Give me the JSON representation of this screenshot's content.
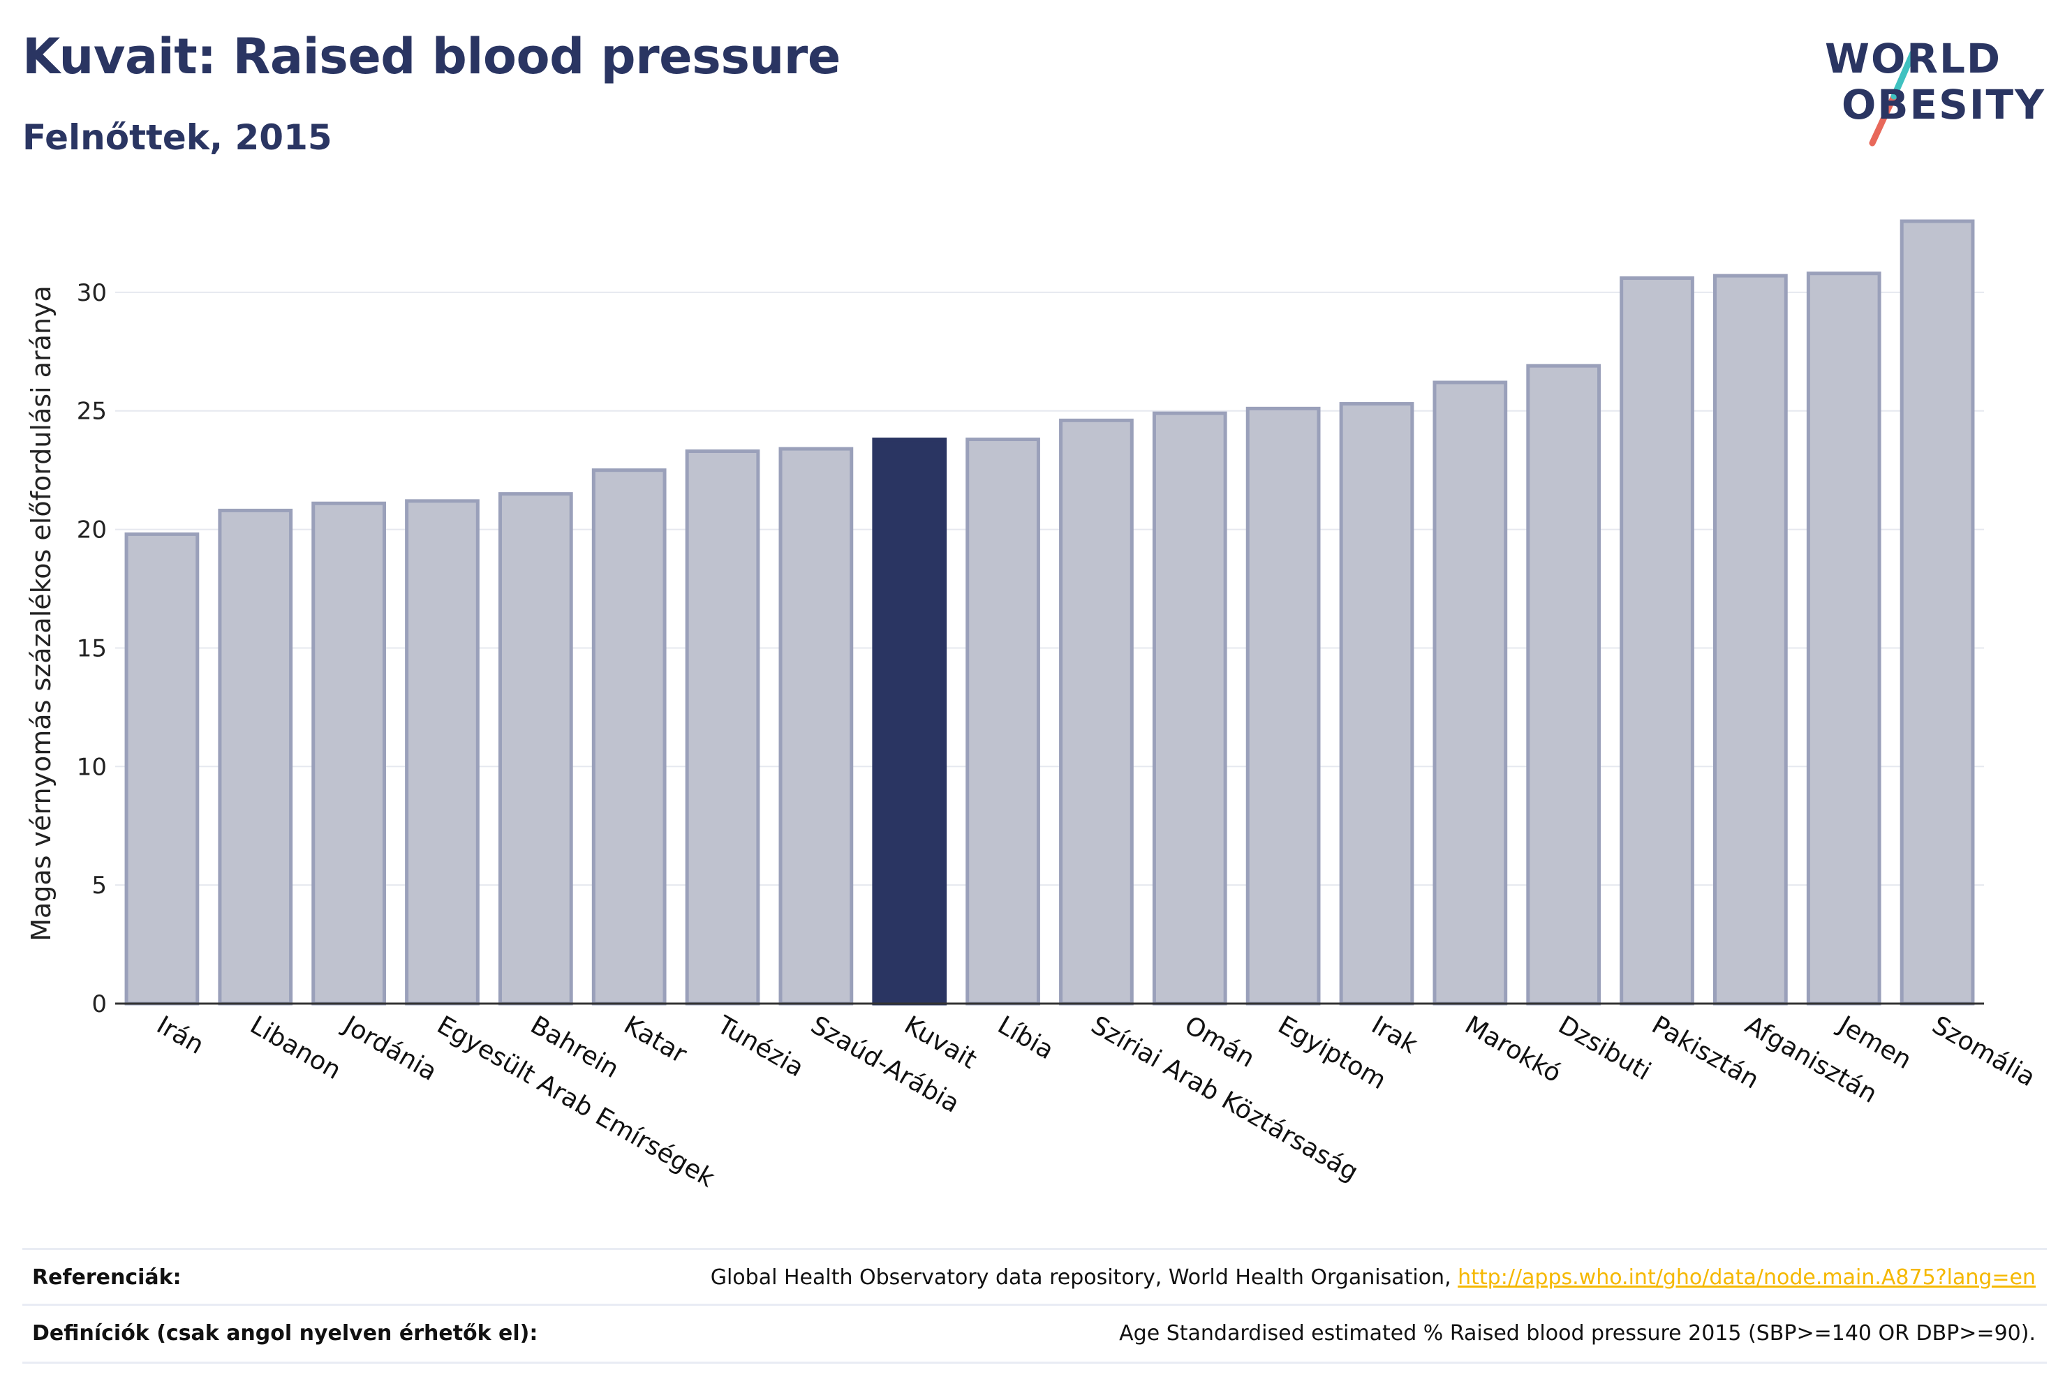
{
  "header": {
    "title": "Kuvait: Raised blood pressure",
    "subtitle": "Felnőttek, 2015"
  },
  "logo": {
    "line1": "WORLD",
    "line2": "OBESITY",
    "accent_colors": [
      "#3fc1c0",
      "#e8685a"
    ]
  },
  "chart_data": {
    "type": "bar",
    "title": "Kuvait: Raised blood pressure",
    "subtitle": "Felnőttek, 2015",
    "ylabel": "Magas vérnyomás százalékos előfordulási aránya",
    "xlabel": "",
    "ylim": [
      0,
      33.5
    ],
    "yticks": [
      0,
      5,
      10,
      15,
      20,
      25,
      30
    ],
    "grid": true,
    "highlight": "Kuvait",
    "colors": {
      "bar": "#bfc2cf",
      "bar_border": "#9aa0ba",
      "highlight": "#2a3562",
      "grid": "#e6e8ef",
      "axis": "#333333"
    },
    "categories": [
      "Irán",
      "Libanon",
      "Jordánia",
      "Egyesült Arab Emírségek",
      "Bahrein",
      "Katar",
      "Tunézia",
      "Szaúd-Arábia",
      "Kuvait",
      "Líbia",
      "Szíriai Arab Köztársaság",
      "Omán",
      "Egyiptom",
      "Irak",
      "Marokkó",
      "Dzsibuti",
      "Pakisztán",
      "Afganisztán",
      "Jemen",
      "Szomália"
    ],
    "values": [
      19.8,
      20.8,
      21.1,
      21.2,
      21.5,
      22.5,
      23.3,
      23.4,
      23.8,
      23.8,
      24.6,
      24.9,
      25.1,
      25.3,
      26.2,
      26.9,
      30.6,
      30.7,
      30.8,
      33.0
    ]
  },
  "footer": {
    "references_label": "Referenciák:",
    "references_text": "Global Health Observatory data repository, World Health Organisation, ",
    "references_link": "http://apps.who.int/gho/data/node.main.A875?lang=en",
    "definitions_label": "Definíciók (csak angol nyelven érhetők el):",
    "definitions_text": "Age Standardised estimated % Raised blood pressure 2015 (SBP>=140 OR DBP>=90)."
  }
}
